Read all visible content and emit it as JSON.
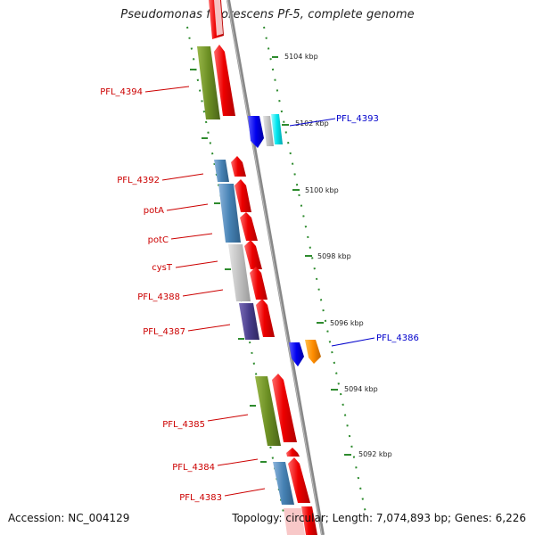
{
  "title": "Pseudomonas fluorescens Pf-5, complete genome",
  "footer": {
    "accession": "Accession: NC_004129",
    "summary": "Topology: circular; Length: 7,074,893 bp; Genes: 6,226"
  },
  "ticks": [
    "5104 kbp",
    "5102 kbp",
    "5100 kbp",
    "5098 kbp",
    "5096 kbp",
    "5094 kbp",
    "5092 kbp"
  ],
  "genes_reverse": [
    "PFL_4394",
    "PFL_4392",
    "potA",
    "potC",
    "cysT",
    "PFL_4388",
    "PFL_4387",
    "PFL_4385",
    "PFL_4384",
    "PFL_4383"
  ],
  "genes_forward": [
    "PFL_4393",
    "PFL_4386"
  ],
  "colors": {
    "reverse_label": "#cc0000",
    "forward_label": "#0000cc",
    "strand_red": "#ee0000",
    "backbone": "#888888",
    "tick_green": "#2e8b2e"
  }
}
